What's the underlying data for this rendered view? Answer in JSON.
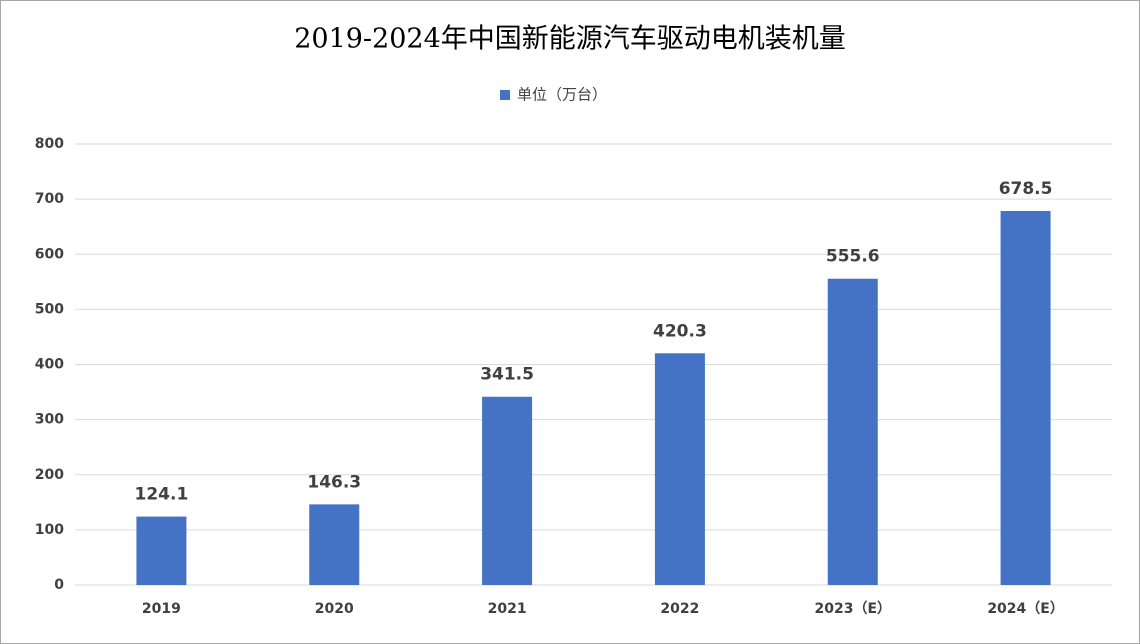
{
  "chart_data": {
    "type": "bar",
    "title": "2019-2024年中国新能源汽车驱动电机装机量",
    "categories": [
      "2019",
      "2020",
      "2021",
      "2022",
      "2023（E）",
      "2024（E）"
    ],
    "series": [
      {
        "name": "单位（万台）",
        "color": "#4472c4",
        "values": [
          124.1,
          146.3,
          341.5,
          420.3,
          555.6,
          678.5
        ]
      }
    ],
    "ylim": [
      0,
      800
    ],
    "yticks": [
      0,
      100,
      200,
      300,
      400,
      500,
      600,
      700,
      800
    ],
    "grid": true
  }
}
